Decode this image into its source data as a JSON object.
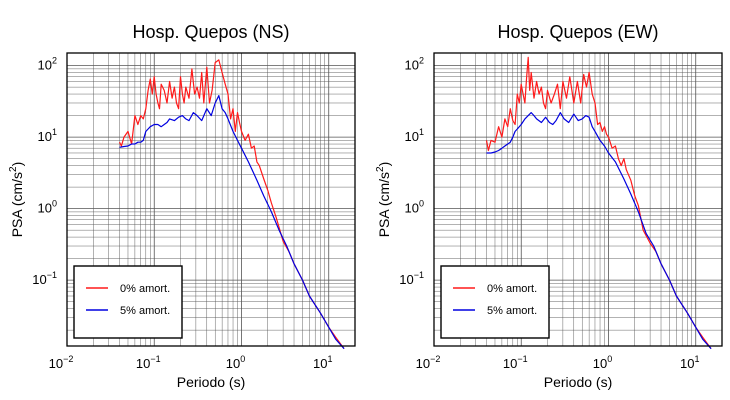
{
  "colors": {
    "series_0": "#ff1a1a",
    "series_5": "#0000e0",
    "grid": "#555555",
    "frame": "#000000"
  },
  "chart_data": [
    {
      "type": "line",
      "title": "Hosp. Quepos (NS)",
      "xlabel": "Periodo (s)",
      "ylabel_base": "PSA (cm/s",
      "ylabel_sup": "2",
      "ylabel_end": ")",
      "xscale": "log",
      "yscale": "log",
      "xlim": [
        0.01,
        20
      ],
      "ylim": [
        0.012,
        150
      ],
      "grid": true,
      "legend_position": "bottom-left",
      "xticks": [
        {
          "value": 0.01,
          "base": "10",
          "exp": "−2"
        },
        {
          "value": 0.1,
          "base": "10",
          "exp": "−1"
        },
        {
          "value": 1,
          "base": "10",
          "exp": "0"
        },
        {
          "value": 10,
          "base": "10",
          "exp": "1"
        }
      ],
      "yticks": [
        {
          "value": 0.1,
          "base": "10",
          "exp": "−1"
        },
        {
          "value": 1,
          "base": "10",
          "exp": "0"
        },
        {
          "value": 10,
          "base": "10",
          "exp": "1"
        },
        {
          "value": 100,
          "base": "10",
          "exp": "2"
        }
      ],
      "series": [
        {
          "name": "0% amort.",
          "color": "#ff1a1a",
          "x": [
            0.04,
            0.042,
            0.045,
            0.05,
            0.055,
            0.06,
            0.065,
            0.07,
            0.075,
            0.08,
            0.085,
            0.09,
            0.095,
            0.1,
            0.105,
            0.11,
            0.115,
            0.12,
            0.13,
            0.14,
            0.15,
            0.16,
            0.17,
            0.18,
            0.19,
            0.2,
            0.21,
            0.22,
            0.23,
            0.25,
            0.27,
            0.29,
            0.31,
            0.33,
            0.35,
            0.37,
            0.4,
            0.43,
            0.46,
            0.5,
            0.55,
            0.6,
            0.65,
            0.7,
            0.75,
            0.8,
            0.85,
            0.9,
            0.95,
            1.0,
            1.1,
            1.2,
            1.3,
            1.4,
            1.5,
            1.6,
            1.7,
            1.8,
            2.0,
            2.2,
            2.5,
            3.0,
            3.5,
            4.0,
            5.0,
            6.0,
            7.0,
            8.0,
            10.0,
            12.0,
            15.0
          ],
          "y": [
            8.5,
            7.5,
            10,
            12,
            8,
            20,
            15,
            20,
            18,
            25,
            45,
            65,
            40,
            70,
            40,
            30,
            25,
            55,
            45,
            30,
            60,
            35,
            50,
            30,
            25,
            70,
            40,
            30,
            50,
            35,
            90,
            40,
            50,
            35,
            80,
            30,
            95,
            30,
            45,
            110,
            120,
            80,
            55,
            40,
            18,
            25,
            12,
            22,
            16,
            12,
            9,
            11,
            7,
            7.5,
            4.5,
            4,
            3.2,
            2.6,
            1.8,
            1.2,
            0.75,
            0.35,
            0.25,
            0.17,
            0.1,
            0.06,
            0.045,
            0.035,
            0.022,
            0.016,
            0.011
          ]
        },
        {
          "name": "5% amort.",
          "color": "#0000e0",
          "x": [
            0.04,
            0.045,
            0.05,
            0.055,
            0.06,
            0.065,
            0.07,
            0.075,
            0.08,
            0.085,
            0.09,
            0.1,
            0.11,
            0.12,
            0.13,
            0.14,
            0.15,
            0.17,
            0.19,
            0.21,
            0.23,
            0.25,
            0.28,
            0.31,
            0.35,
            0.4,
            0.45,
            0.5,
            0.55,
            0.6,
            0.65,
            0.7,
            0.8,
            0.9,
            1.0,
            1.2,
            1.5,
            1.8,
            2.2,
            2.7,
            3.3,
            4.0,
            5.0,
            6.0,
            8.0,
            10.0,
            12.0,
            15.0
          ],
          "y": [
            7.2,
            7.4,
            7.5,
            8,
            8,
            8.5,
            8.5,
            9,
            12,
            13,
            14,
            15,
            15,
            14,
            15,
            16,
            18,
            17,
            19,
            20,
            18,
            17,
            22,
            20,
            17,
            25,
            20,
            30,
            38,
            25,
            22,
            18,
            12,
            9,
            7,
            4.5,
            2.5,
            1.5,
            0.9,
            0.5,
            0.3,
            0.17,
            0.1,
            0.06,
            0.035,
            0.022,
            0.015,
            0.011
          ]
        }
      ]
    },
    {
      "type": "line",
      "title": "Hosp. Quepos (EW)",
      "xlabel": "Periodo (s)",
      "ylabel_base": "PSA (cm/s",
      "ylabel_sup": "2",
      "ylabel_end": ")",
      "xscale": "log",
      "yscale": "log",
      "xlim": [
        0.01,
        20
      ],
      "ylim": [
        0.012,
        150
      ],
      "grid": true,
      "legend_position": "bottom-left",
      "xticks": [
        {
          "value": 0.01,
          "base": "10",
          "exp": "−2"
        },
        {
          "value": 0.1,
          "base": "10",
          "exp": "−1"
        },
        {
          "value": 1,
          "base": "10",
          "exp": "0"
        },
        {
          "value": 10,
          "base": "10",
          "exp": "1"
        }
      ],
      "yticks": [
        {
          "value": 0.1,
          "base": "10",
          "exp": "−1"
        },
        {
          "value": 1,
          "base": "10",
          "exp": "0"
        },
        {
          "value": 10,
          "base": "10",
          "exp": "1"
        },
        {
          "value": 100,
          "base": "10",
          "exp": "2"
        }
      ],
      "series": [
        {
          "name": "0% amort.",
          "color": "#ff1a1a",
          "x": [
            0.04,
            0.042,
            0.045,
            0.05,
            0.055,
            0.06,
            0.065,
            0.07,
            0.075,
            0.08,
            0.085,
            0.09,
            0.095,
            0.1,
            0.105,
            0.11,
            0.115,
            0.12,
            0.125,
            0.13,
            0.14,
            0.15,
            0.16,
            0.17,
            0.18,
            0.19,
            0.2,
            0.22,
            0.24,
            0.26,
            0.28,
            0.3,
            0.33,
            0.36,
            0.4,
            0.44,
            0.48,
            0.52,
            0.56,
            0.6,
            0.65,
            0.7,
            0.75,
            0.8,
            0.85,
            0.9,
            0.95,
            1.0,
            1.1,
            1.2,
            1.3,
            1.4,
            1.5,
            1.6,
            1.8,
            2.0,
            2.2,
            2.5,
            3.0,
            3.5,
            4.0,
            5.0,
            6.0,
            7.0,
            8.0,
            10.0,
            12.0,
            15.0
          ],
          "y": [
            9,
            6.5,
            9,
            8.5,
            14,
            10,
            18,
            14,
            25,
            17,
            15,
            40,
            30,
            55,
            40,
            30,
            65,
            130,
            45,
            80,
            35,
            60,
            40,
            50,
            30,
            25,
            45,
            30,
            40,
            55,
            25,
            60,
            35,
            70,
            30,
            60,
            30,
            75,
            50,
            80,
            40,
            30,
            15,
            16,
            12,
            14,
            11,
            10,
            7,
            7.5,
            5,
            4,
            5,
            3.5,
            2.5,
            1.5,
            1.1,
            0.5,
            0.33,
            0.25,
            0.17,
            0.1,
            0.06,
            0.045,
            0.035,
            0.022,
            0.016,
            0.011
          ]
        },
        {
          "name": "5% amort.",
          "color": "#0000e0",
          "x": [
            0.04,
            0.045,
            0.05,
            0.055,
            0.06,
            0.065,
            0.07,
            0.075,
            0.08,
            0.085,
            0.09,
            0.1,
            0.11,
            0.12,
            0.13,
            0.14,
            0.15,
            0.17,
            0.19,
            0.21,
            0.23,
            0.25,
            0.28,
            0.31,
            0.35,
            0.4,
            0.45,
            0.5,
            0.55,
            0.6,
            0.65,
            0.7,
            0.8,
            0.9,
            1.0,
            1.2,
            1.5,
            1.8,
            2.2,
            2.7,
            3.3,
            4.0,
            5.0,
            6.0,
            8.0,
            10.0,
            12.0,
            15.0
          ],
          "y": [
            6,
            6,
            6.2,
            6.5,
            7,
            7.5,
            8,
            8.5,
            10,
            12,
            13,
            15,
            18,
            20,
            22,
            20,
            18,
            16,
            19,
            16,
            15,
            17,
            22,
            18,
            16,
            21,
            17,
            18,
            20,
            19,
            14,
            12,
            9,
            7.5,
            6,
            4.5,
            2.6,
            1.6,
            0.9,
            0.45,
            0.3,
            0.17,
            0.1,
            0.06,
            0.035,
            0.022,
            0.015,
            0.011
          ]
        }
      ]
    }
  ]
}
